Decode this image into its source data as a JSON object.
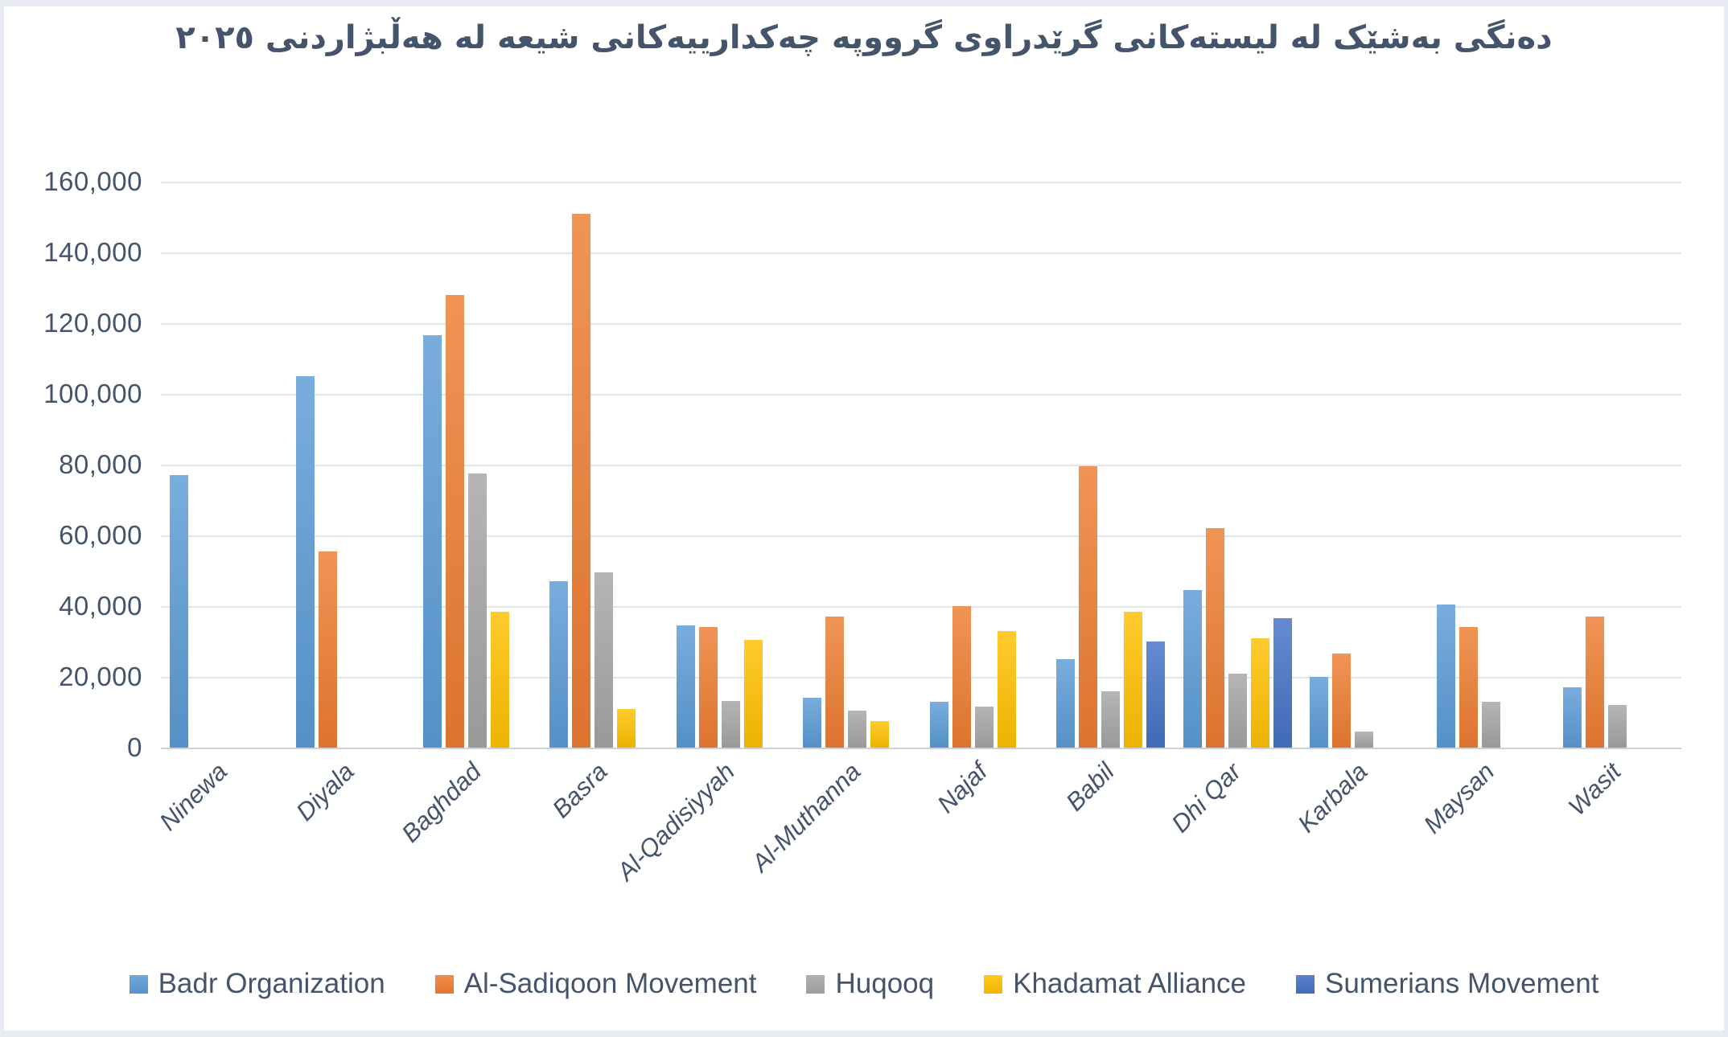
{
  "page": {
    "background": "#e8ecf2",
    "canvas_background": "#ffffff"
  },
  "chart_data": {
    "type": "bar",
    "title": "دەنگی بەشێک لە لیستەکانی گرێدراوی گرووپە چەکدارییەکانی شیعە لە هەڵبژاردنی ٢٠٢٥",
    "title_color": "#44546A",
    "axis_text_color": "#44546A",
    "gridline_color": "#e1e5ea",
    "axis_line_color": "#cdd2d9",
    "grid": true,
    "legend_position": "bottom",
    "ylim": [
      0,
      160000
    ],
    "yticks": [
      {
        "value": 0,
        "label": "0"
      },
      {
        "value": 20000,
        "label": "20,000"
      },
      {
        "value": 40000,
        "label": "40,000"
      },
      {
        "value": 60000,
        "label": "60,000"
      },
      {
        "value": 80000,
        "label": "80,000"
      },
      {
        "value": 100000,
        "label": "100,000"
      },
      {
        "value": 120000,
        "label": "120,000"
      },
      {
        "value": 140000,
        "label": "140,000"
      },
      {
        "value": 160000,
        "label": "160,000"
      }
    ],
    "categories": [
      "Ninewa",
      "Diyala",
      "Baghdad",
      "Basra",
      "Al-Qadisiyyah",
      "Al-Muthanna",
      "Najaf",
      "Babil",
      "Dhi Qar",
      "Karbala",
      "Maysan",
      "Wasit"
    ],
    "series": [
      {
        "name": "Badr Organization",
        "color": "#5B9BD5",
        "values": [
          77000,
          105000,
          116500,
          47000,
          34500,
          14000,
          13000,
          25000,
          44500,
          20000,
          40500,
          17000
        ]
      },
      {
        "name": "Al-Sadiqoon Movement",
        "color": "#ED7D31",
        "values": [
          null,
          55500,
          128000,
          151000,
          34200,
          37000,
          40000,
          79500,
          62000,
          26500,
          34000,
          37000
        ]
      },
      {
        "name": "Huqooq",
        "color": "#A5A5A5",
        "values": [
          null,
          null,
          77500,
          49500,
          13200,
          10500,
          11500,
          16000,
          21000,
          4500,
          13000,
          12000
        ]
      },
      {
        "name": "Khadamat Alliance",
        "color": "#FFC000",
        "values": [
          null,
          null,
          38500,
          11000,
          30500,
          7500,
          33000,
          38500,
          31000,
          null,
          null,
          null
        ]
      },
      {
        "name": "Sumerians Movement",
        "color": "#4472C4",
        "values": [
          null,
          null,
          null,
          null,
          null,
          null,
          null,
          30000,
          36500,
          null,
          null,
          null
        ]
      }
    ]
  }
}
